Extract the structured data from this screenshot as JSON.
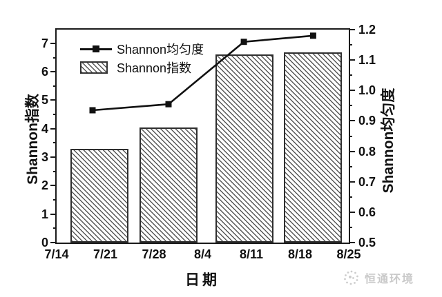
{
  "chart_data": {
    "type": "bar",
    "subtype": "dual-axis combo: hatched bars (left axis) + line with square markers (right axis)",
    "title": "",
    "grid": false,
    "plot_background": "#ffffff",
    "x_axis": {
      "label": "日期",
      "tick_labels": [
        "7/14",
        "7/21",
        "7/28",
        "8/4",
        "8/11",
        "8/18",
        "8/25"
      ]
    },
    "y_axis_left": {
      "label": "Shannon指数",
      "tick_labels": [
        "0",
        "1",
        "2",
        "3",
        "4",
        "5",
        "6",
        "7"
      ],
      "tick_values": [
        0,
        1,
        2,
        3,
        4,
        5,
        6,
        7
      ],
      "display_max": 7.48,
      "minor_tick_step": 0.5
    },
    "y_axis_right": {
      "label": "Shannon均匀度",
      "tick_labels": [
        "0.5",
        "0.6",
        "0.7",
        "0.8",
        "0.9",
        "1.0",
        "1.1",
        "1.2"
      ],
      "tick_values": [
        0.5,
        0.6,
        0.7,
        0.8,
        0.9,
        1.0,
        1.1,
        1.2
      ],
      "min": 0.5,
      "max": 1.2,
      "minor_tick_step": 0.05
    },
    "series": [
      {
        "name": "Shannon指数",
        "type": "bar",
        "axis": "left",
        "style": "white fill, dark diagonal hatch (top-left to bottom-right), dark border",
        "values": [
          3.3,
          4.04,
          6.61,
          6.68
        ],
        "x_percent": [
          14.7,
          38.4,
          64.2,
          87.8
        ],
        "bar_width_percent": 19.9,
        "x_dates_approx": [
          "7/20",
          "7/30",
          "8/10",
          "8/20"
        ]
      },
      {
        "name": "Shannon均匀度",
        "type": "line",
        "axis": "right",
        "marker": "filled-square",
        "color": "#111111",
        "values": [
          0.935,
          0.955,
          1.16,
          1.18
        ],
        "x_percent": [
          12.3,
          38.3,
          64.1,
          87.8
        ],
        "x_dates_approx": [
          "7/19",
          "7/30",
          "8/10",
          "8/20"
        ]
      }
    ],
    "legend": {
      "position": "inside top-left",
      "entries": [
        {
          "label": "Shannon均匀度",
          "swatch": "line-with-square-marker"
        },
        {
          "label": "Shannon指数",
          "swatch": "hatched-box"
        }
      ]
    }
  },
  "watermark": {
    "text": "恒通环境",
    "icon": "dotted-swirl-logo",
    "color": "#c9c9c9"
  },
  "colors": {
    "frame": "#1a1a1a",
    "tick_text": "#111111",
    "bar_border": "#2e2e2e",
    "hatch_line": "#565656",
    "line_series": "#111111",
    "background": "#ffffff"
  }
}
